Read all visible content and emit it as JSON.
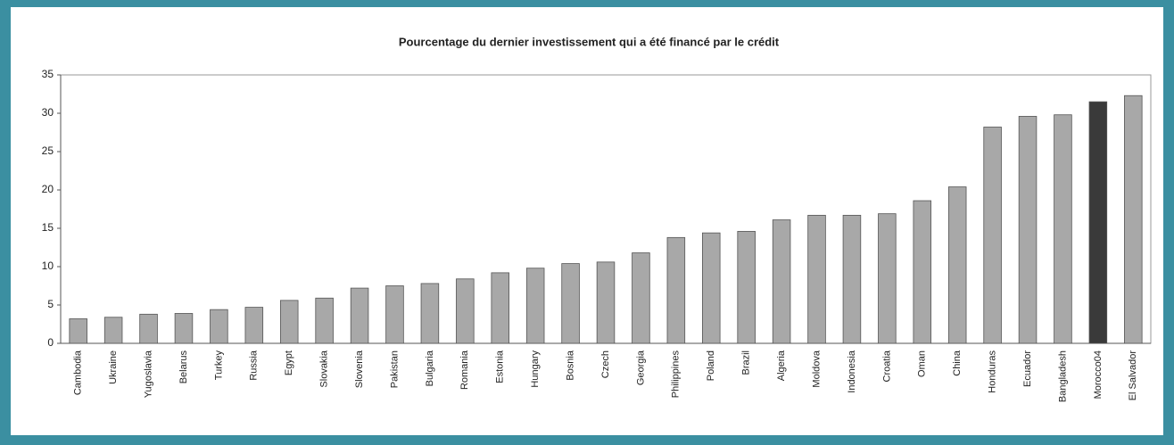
{
  "chart_data": {
    "type": "bar",
    "title": "Pourcentage du dernier investissement qui a été financé par le crédit",
    "categories": [
      "Cambodia",
      "Ukraine",
      "Yugoslavia",
      "Belarus",
      "Turkey",
      "Russia",
      "Egypt",
      "Slovakia",
      "Slovenia",
      "Pakistan",
      "Bulgaria",
      "Romania",
      "Estonia",
      "Hungary",
      "Bosnia",
      "Czech",
      "Georgia",
      "Philippines",
      "Poland",
      "Brazil",
      "Algeria",
      "Moldova",
      "Indonesia",
      "Croatia",
      "Oman",
      "China",
      "Honduras",
      "Ecuador",
      "Bangladesh",
      "Morocco04",
      "El Salvador"
    ],
    "values": [
      3.2,
      3.4,
      3.8,
      3.9,
      4.4,
      4.7,
      5.6,
      5.9,
      7.2,
      7.5,
      7.8,
      8.4,
      9.2,
      9.8,
      10.4,
      10.6,
      11.8,
      13.8,
      14.4,
      14.6,
      16.1,
      16.7,
      16.7,
      16.9,
      18.6,
      20.4,
      28.2,
      29.6,
      29.8,
      31.5,
      32.3
    ],
    "colors": [
      "#a8a8a8",
      "#a8a8a8",
      "#a8a8a8",
      "#a8a8a8",
      "#a8a8a8",
      "#a8a8a8",
      "#a8a8a8",
      "#a8a8a8",
      "#a8a8a8",
      "#a8a8a8",
      "#a8a8a8",
      "#a8a8a8",
      "#a8a8a8",
      "#a8a8a8",
      "#a8a8a8",
      "#a8a8a8",
      "#a8a8a8",
      "#a8a8a8",
      "#a8a8a8",
      "#a8a8a8",
      "#a8a8a8",
      "#a8a8a8",
      "#a8a8a8",
      "#a8a8a8",
      "#a8a8a8",
      "#a8a8a8",
      "#a8a8a8",
      "#a8a8a8",
      "#a8a8a8",
      "#3a3a3a",
      "#a8a8a8"
    ],
    "ylim": [
      0,
      35
    ],
    "yticks": [
      0,
      5,
      10,
      15,
      20,
      25,
      30,
      35
    ],
    "grid": false
  }
}
